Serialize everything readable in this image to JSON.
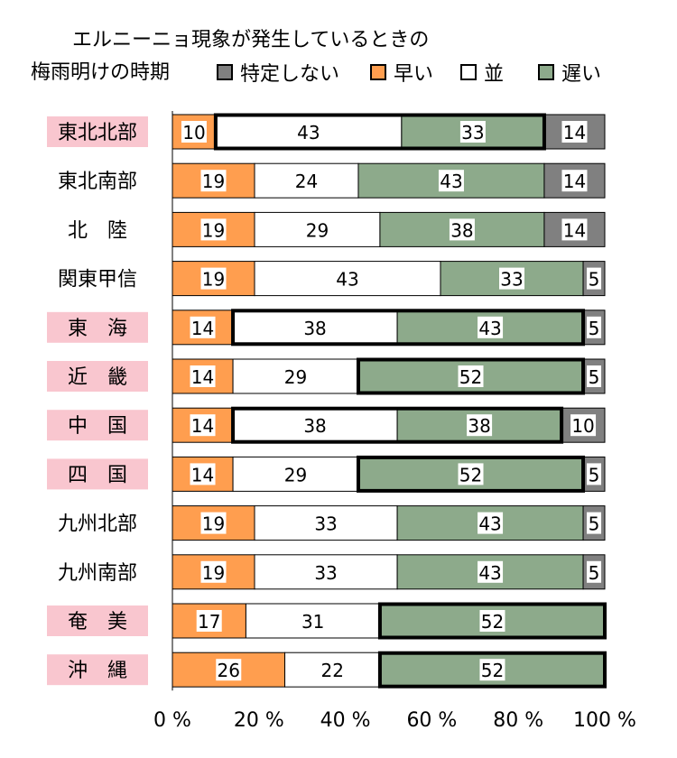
{
  "title": {
    "line1": "エルニーニョ現象が発生しているときの",
    "line2": "梅雨明けの時期"
  },
  "legend": [
    {
      "label": "特定しない",
      "color": "#808080"
    },
    {
      "label": "早い",
      "color": "#ff9e4f"
    },
    {
      "label": "並",
      "color": "#ffffff"
    },
    {
      "label": "遅い",
      "color": "#8daa8b"
    }
  ],
  "chart_data": {
    "type": "bar",
    "orientation": "horizontal",
    "stacked": true,
    "categories": [
      "東北北部",
      "東北南部",
      "北　陸",
      "関東甲信",
      "東　海",
      "近　畿",
      "中　国",
      "四　国",
      "九州北部",
      "九州南部",
      "奄　美",
      "沖　縄"
    ],
    "highlighted_categories": [
      "東北北部",
      "東　海",
      "近　畿",
      "中　国",
      "四　国",
      "奄　美",
      "沖　縄"
    ],
    "series": [
      {
        "name": "早い",
        "color": "#ff9e4f",
        "values": [
          10,
          19,
          19,
          19,
          14,
          14,
          14,
          14,
          19,
          19,
          17,
          26
        ]
      },
      {
        "name": "並",
        "color": "#ffffff",
        "values": [
          43,
          24,
          29,
          43,
          38,
          29,
          38,
          29,
          33,
          33,
          31,
          22
        ]
      },
      {
        "name": "遅い",
        "color": "#8daa8b",
        "values": [
          33,
          43,
          38,
          33,
          43,
          52,
          38,
          52,
          43,
          43,
          52,
          52
        ]
      },
      {
        "name": "特定しない",
        "color": "#808080",
        "values": [
          14,
          14,
          14,
          5,
          5,
          5,
          10,
          5,
          5,
          5,
          0,
          0
        ]
      }
    ],
    "emphasized_segments": [
      {
        "category": "東北北部",
        "series": [
          "並",
          "遅い"
        ]
      },
      {
        "category": "東　海",
        "series": [
          "並",
          "遅い"
        ]
      },
      {
        "category": "近　畿",
        "series": [
          "遅い"
        ]
      },
      {
        "category": "中　国",
        "series": [
          "並",
          "遅い"
        ]
      },
      {
        "category": "四　国",
        "series": [
          "遅い"
        ]
      },
      {
        "category": "奄　美",
        "series": [
          "遅い"
        ]
      },
      {
        "category": "沖　縄",
        "series": [
          "遅い"
        ]
      }
    ],
    "xlim": [
      0,
      100
    ],
    "xticks": [
      "0 %",
      "20 %",
      "40 %",
      "60 %",
      "80 %",
      "100 %"
    ],
    "highlight_color": "#f9c6cf",
    "grid": false,
    "legend_position": "top"
  }
}
